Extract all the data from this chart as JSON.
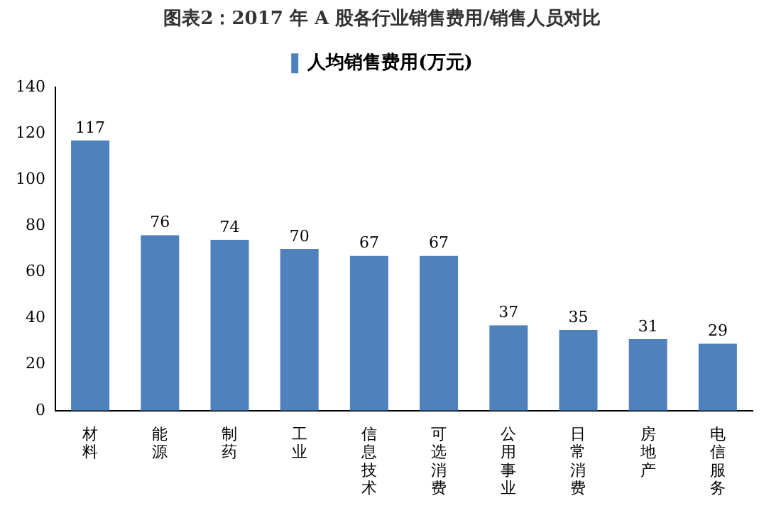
{
  "chart_data": {
    "type": "bar",
    "title": "图表2：2017 年 A 股各行业销售费用/销售人员对比",
    "categories": [
      "材料",
      "能源",
      "制药",
      "工业",
      "信息技术",
      "可选消费",
      "公用事业",
      "日常消费",
      "房地产",
      "电信服务"
    ],
    "series": [
      {
        "name": "人均销售费用(万元)",
        "color": "#4f81bd",
        "values": [
          117,
          76,
          74,
          70,
          67,
          67,
          37,
          35,
          31,
          29
        ]
      }
    ],
    "ylim": [
      0,
      140
    ],
    "yticks": [
      0,
      20,
      40,
      60,
      80,
      100,
      120,
      140
    ],
    "grid": false,
    "legend": "top",
    "data_labels": true
  }
}
